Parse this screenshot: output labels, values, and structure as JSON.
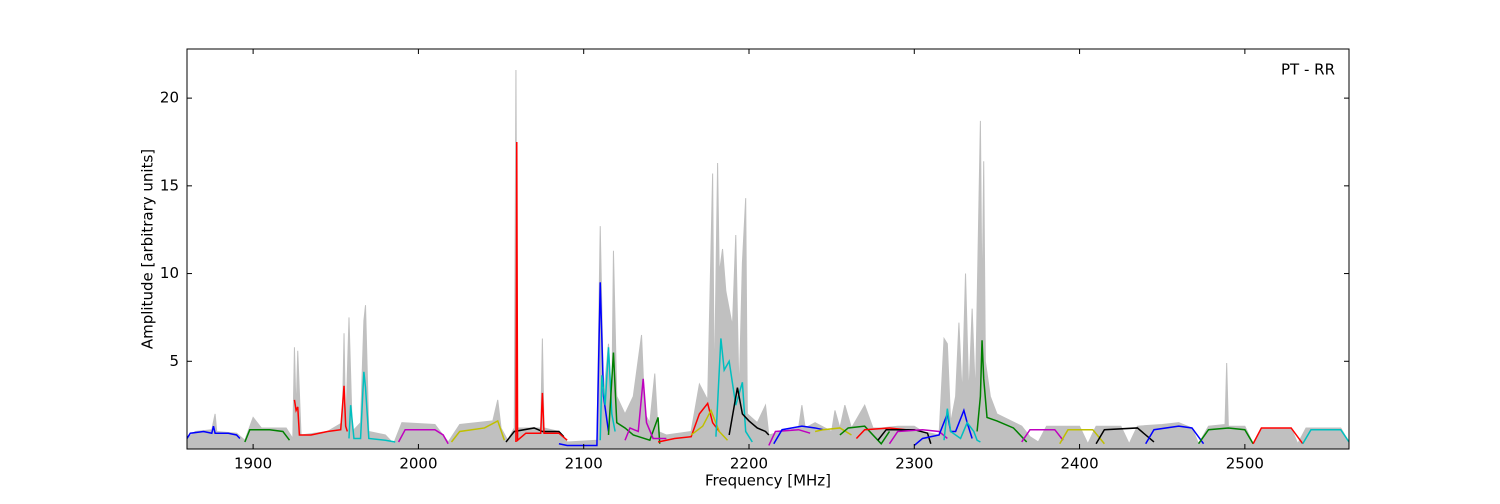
{
  "chart_data": {
    "type": "line",
    "annotation": "PT - RR",
    "x_label": "Frequency [MHz]",
    "y_label": "Amplitude [arbitrary units]",
    "xlim": [
      1860,
      2563
    ],
    "ylim": [
      0,
      22.8
    ],
    "xticks": [
      1900,
      2000,
      2100,
      2200,
      2300,
      2400,
      2500
    ],
    "yticks": [
      5,
      10,
      15,
      20
    ],
    "series": [
      {
        "color": "#c0c0c0",
        "area": true,
        "x": [
          1860,
          1865,
          1875,
          1877,
          1878,
          1890,
          1895,
          1900,
          1905,
          1920,
          1924,
          1925,
          1926,
          1927,
          1929,
          1945,
          1954,
          1955,
          1956,
          1958,
          1960,
          1965,
          1967,
          1968,
          1970,
          1980,
          1985,
          1990,
          2010,
          2018,
          2025,
          2045,
          2048,
          2050,
          2054,
          2058,
          2059,
          2060,
          2074,
          2075,
          2076,
          2085,
          2090,
          2108,
          2110,
          2112,
          2115,
          2117,
          2118,
          2120,
          2125,
          2130,
          2135,
          2137,
          2140,
          2143,
          2145,
          2150,
          2165,
          2170,
          2175,
          2178,
          2179,
          2181,
          2182,
          2184,
          2186,
          2190,
          2192,
          2194,
          2196,
          2198,
          2199,
          2205,
          2210,
          2212,
          2220,
          2230,
          2232,
          2234,
          2240,
          2250,
          2252,
          2255,
          2258,
          2262,
          2270,
          2275,
          2280,
          2290,
          2300,
          2305,
          2315,
          2318,
          2320,
          2322,
          2325,
          2327,
          2329,
          2331,
          2333,
          2335,
          2337,
          2340,
          2341,
          2342,
          2343,
          2346,
          2350,
          2365,
          2370,
          2375,
          2380,
          2400,
          2405,
          2410,
          2425,
          2430,
          2435,
          2450,
          2460,
          2468,
          2472,
          2478,
          2488,
          2489,
          2490,
          2500,
          2505,
          2510,
          2528,
          2532,
          2537,
          2558,
          2563
        ],
        "values": [
          0.6,
          1.0,
          1.1,
          2.0,
          1.0,
          0.9,
          0.5,
          1.8,
          1.2,
          1.2,
          0.6,
          5.8,
          2.0,
          5.6,
          0.8,
          1.0,
          1.5,
          6.6,
          1.0,
          7.5,
          1.0,
          1.5,
          7.3,
          8.2,
          1.0,
          0.8,
          0.3,
          1.5,
          1.4,
          0.4,
          1.4,
          1.6,
          2.8,
          1.2,
          0.5,
          1.2,
          21.6,
          1.2,
          1.2,
          6.3,
          1.2,
          1.0,
          0.4,
          0.5,
          12.7,
          3,
          6,
          2.6,
          11.3,
          3,
          2,
          3,
          6.5,
          2,
          1.5,
          4.3,
          1,
          0.8,
          1.0,
          3.7,
          2.8,
          15.7,
          3,
          16.3,
          10,
          11.4,
          9,
          7,
          12.2,
          3,
          10.6,
          14.3,
          2,
          1.5,
          2.5,
          0.8,
          1,
          1.2,
          2.5,
          1.2,
          1.5,
          1.0,
          2.2,
          1.2,
          2.5,
          1.2,
          2.5,
          1.2,
          1.2,
          1.3,
          1.3,
          1.0,
          0.8,
          6.3,
          6.0,
          1.5,
          3,
          7.2,
          3,
          10.0,
          3,
          8,
          3,
          18.7,
          8,
          16.4,
          5,
          3,
          2,
          1.3,
          0.7,
          0.4,
          1.3,
          1.3,
          0.3,
          1.3,
          1.3,
          0.3,
          1.3,
          1.4,
          1.5,
          1.2,
          0.3,
          1.3,
          1.4,
          4.9,
          1.3,
          1.3,
          0.3,
          1.2,
          1.2,
          0.3,
          1.2,
          1.2,
          0.4
        ]
      },
      {
        "color": "#0000ff",
        "x": [
          1860,
          1862,
          1870,
          1875,
          1876,
          1877,
          1885,
          1890,
          1892
        ],
        "values": [
          0.6,
          0.9,
          1.0,
          0.9,
          1.3,
          0.9,
          0.9,
          0.8,
          0.6
        ]
      },
      {
        "color": "#008000",
        "x": [
          1895,
          1898,
          1910,
          1918,
          1922
        ],
        "values": [
          0.4,
          1.1,
          1.1,
          1.0,
          0.5
        ]
      },
      {
        "color": "#ff0000",
        "x": [
          1925,
          1926,
          1927,
          1928,
          1935,
          1945,
          1953,
          1955,
          1956,
          1957
        ],
        "values": [
          2.8,
          2.2,
          2.4,
          0.8,
          0.8,
          1.0,
          1.1,
          3.6,
          1.3,
          1.0
        ]
      },
      {
        "color": "#00bfbf",
        "x": [
          1958,
          1959,
          1961,
          1965,
          1967,
          1968,
          1970,
          1980,
          1986
        ],
        "values": [
          0.6,
          2.5,
          0.6,
          0.6,
          4.4,
          3.5,
          0.6,
          0.5,
          0.4
        ]
      },
      {
        "color": "#bf00bf",
        "x": [
          1988,
          1992,
          2010,
          2015,
          2018
        ],
        "values": [
          0.4,
          1.1,
          1.1,
          0.8,
          0.3
        ]
      },
      {
        "color": "#bfbf00",
        "x": [
          2020,
          2025,
          2040,
          2048,
          2052
        ],
        "values": [
          0.4,
          1.0,
          1.2,
          1.6,
          0.5
        ]
      },
      {
        "color": "#000000",
        "x": [
          2053,
          2058,
          2070,
          2075,
          2085,
          2088
        ],
        "values": [
          0.4,
          1.0,
          1.2,
          1.0,
          1.0,
          0.7
        ]
      },
      {
        "color": "#ff0000",
        "x": [
          2059,
          2059.5,
          2060,
          2065,
          2074,
          2075,
          2076,
          2085,
          2090
        ],
        "values": [
          0.4,
          17.5,
          0.5,
          0.9,
          0.9,
          3.2,
          0.9,
          0.9,
          0.5
        ]
      },
      {
        "color": "#0000ff",
        "x": [
          2085,
          2090,
          2108,
          2110,
          2112,
          2115
        ],
        "values": [
          0.3,
          0.2,
          0.2,
          9.5,
          3,
          1.0
        ]
      },
      {
        "color": "#00bfbf",
        "x": [
          2110,
          2111,
          2113,
          2115,
          2117,
          2119
        ],
        "values": [
          0.5,
          4.2,
          2.5,
          5.8,
          2.0,
          1.0
        ]
      },
      {
        "color": "#008000",
        "x": [
          2115,
          2118,
          2120,
          2125,
          2130,
          2140,
          2145,
          2146
        ],
        "values": [
          0.8,
          5.5,
          1.5,
          1.2,
          0.8,
          0.5,
          1.8,
          0.3
        ]
      },
      {
        "color": "#bf00bf",
        "x": [
          2125,
          2128,
          2133,
          2136,
          2138,
          2142,
          2150
        ],
        "values": [
          0.5,
          1.2,
          1.0,
          4.0,
          1.5,
          0.6,
          0.6
        ]
      },
      {
        "color": "#ff0000",
        "x": [
          2145,
          2155,
          2165,
          2170,
          2175,
          2178,
          2182
        ],
        "values": [
          0.4,
          0.6,
          0.7,
          2.0,
          2.6,
          1.5,
          1.0
        ]
      },
      {
        "color": "#bfbf00",
        "x": [
          2165,
          2172,
          2177,
          2182,
          2187
        ],
        "values": [
          0.8,
          1.3,
          2.2,
          1.0,
          0.5
        ]
      },
      {
        "color": "#00bfbf",
        "x": [
          2180,
          2183,
          2185,
          2188,
          2192,
          2196,
          2198,
          2202
        ],
        "values": [
          0.7,
          6.3,
          4.5,
          5.0,
          2.5,
          3.8,
          1.0,
          0.4
        ]
      },
      {
        "color": "#000000",
        "x": [
          2188,
          2193,
          2196,
          2200,
          2205,
          2210,
          2212
        ],
        "values": [
          0.8,
          3.5,
          2.0,
          1.6,
          1.2,
          1.0,
          0.8
        ]
      },
      {
        "color": "#bf00bf",
        "x": [
          2212,
          2216,
          2230,
          2237
        ],
        "values": [
          0.2,
          1.0,
          1.1,
          0.9
        ]
      },
      {
        "color": "#0000ff",
        "x": [
          2215,
          2220,
          2232,
          2240,
          2245
        ],
        "values": [
          0.3,
          1.1,
          1.3,
          1.2,
          1.1
        ]
      },
      {
        "color": "#bfbf00",
        "x": [
          2240,
          2245,
          2255,
          2262
        ],
        "values": [
          1.0,
          1.1,
          1.2,
          0.8
        ]
      },
      {
        "color": "#008000",
        "x": [
          2255,
          2260,
          2270,
          2280,
          2285
        ],
        "values": [
          0.8,
          1.2,
          1.3,
          0.3,
          1.0
        ]
      },
      {
        "color": "#ff0000",
        "x": [
          2265,
          2270,
          2285,
          2295,
          2300
        ],
        "values": [
          0.6,
          1.1,
          1.2,
          1.1,
          1.1
        ]
      },
      {
        "color": "#000000",
        "x": [
          2278,
          2283,
          2300,
          2308,
          2310
        ],
        "values": [
          0.5,
          1.1,
          1.1,
          0.9,
          0.3
        ]
      },
      {
        "color": "#bf00bf",
        "x": [
          2285,
          2290,
          2305,
          2315,
          2320
        ],
        "values": [
          0.3,
          1.0,
          1.1,
          1.0,
          0.6
        ]
      },
      {
        "color": "#0000ff",
        "x": [
          2300,
          2305,
          2315,
          2320,
          2322,
          2325,
          2330,
          2332,
          2335
        ],
        "values": [
          0.2,
          0.6,
          0.8,
          2.0,
          1.0,
          1.0,
          2.2,
          1.5,
          0.6
        ]
      },
      {
        "color": "#00bfbf",
        "x": [
          2318,
          2320,
          2322,
          2328,
          2332,
          2336,
          2338,
          2340
        ],
        "values": [
          0.5,
          2.3,
          1.0,
          0.6,
          1.5,
          1.0,
          0.5,
          0.4
        ]
      },
      {
        "color": "#008000",
        "x": [
          2338,
          2340,
          2341,
          2342,
          2344,
          2350,
          2360,
          2368
        ],
        "values": [
          1.0,
          3.0,
          6.2,
          4.0,
          1.8,
          1.6,
          1.2,
          0.4
        ]
      },
      {
        "color": "#bf00bf",
        "x": [
          2365,
          2370,
          2385,
          2390
        ],
        "values": [
          0.4,
          1.1,
          1.1,
          0.5
        ]
      },
      {
        "color": "#bfbf00",
        "x": [
          2388,
          2393,
          2408,
          2415
        ],
        "values": [
          0.3,
          1.1,
          1.1,
          0.3
        ]
      },
      {
        "color": "#000000",
        "x": [
          2410,
          2415,
          2435,
          2445
        ],
        "values": [
          0.3,
          1.1,
          1.2,
          0.4
        ]
      },
      {
        "color": "#0000ff",
        "x": [
          2440,
          2445,
          2460,
          2468,
          2475
        ],
        "values": [
          0.3,
          1.1,
          1.3,
          1.2,
          0.3
        ]
      },
      {
        "color": "#008000",
        "x": [
          2472,
          2478,
          2490,
          2500,
          2505
        ],
        "values": [
          0.3,
          1.1,
          1.2,
          1.1,
          0.3
        ]
      },
      {
        "color": "#ff0000",
        "x": [
          2505,
          2510,
          2528,
          2535
        ],
        "values": [
          0.3,
          1.2,
          1.2,
          0.3
        ]
      },
      {
        "color": "#00bfbf",
        "x": [
          2535,
          2540,
          2558,
          2563
        ],
        "values": [
          0.3,
          1.1,
          1.1,
          0.4
        ]
      }
    ]
  }
}
